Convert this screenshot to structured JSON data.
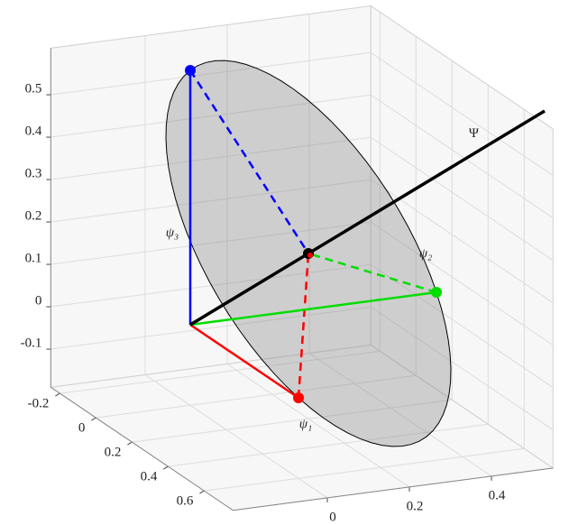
{
  "chart_data": {
    "type": "vector3d",
    "xlim": [
      -0.23,
      0.55
    ],
    "ylim": [
      -0.25,
      0.76
    ],
    "zlim": [
      -0.19,
      0.61
    ],
    "xticks": [
      0,
      0.2,
      0.4
    ],
    "yticks": [
      -0.2,
      0,
      0.2,
      0.4,
      0.6
    ],
    "zticks": [
      -0.1,
      0,
      0.1,
      0.2,
      0.3,
      0.4,
      0.5
    ],
    "grid": true,
    "vectors": [
      {
        "name": "ψ₁",
        "color": "#ff0000",
        "end": [
          0,
          0.6,
          0
        ]
      },
      {
        "name": "ψ₂",
        "color": "#00dd00",
        "end": [
          0.6,
          0,
          0
        ]
      },
      {
        "name": "ψ₃",
        "color": "#0000ff",
        "end": [
          0,
          0,
          0.6
        ]
      }
    ],
    "point": [
      0.2,
      0.2,
      0.2
    ],
    "line": {
      "name": "Ψ",
      "color": "#000000",
      "end": [
        0.6,
        0.6,
        0.6
      ]
    },
    "disk": {
      "center": [
        0.2,
        0.2,
        0.2
      ],
      "radius": 0.49,
      "color": "#808080"
    }
  }
}
